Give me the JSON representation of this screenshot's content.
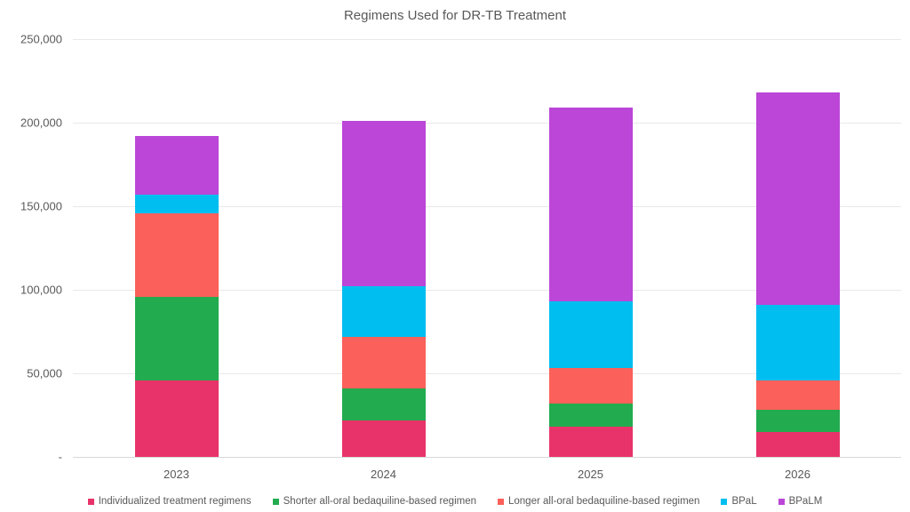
{
  "chart_data": {
    "type": "bar",
    "stacked": true,
    "title": "Regimens Used for DR-TB Treatment",
    "xlabel": "",
    "ylabel": "",
    "categories": [
      "2023",
      "2024",
      "2025",
      "2026"
    ],
    "series": [
      {
        "name": "Individualized treatment regimens",
        "color": "#e8336a",
        "values": [
          46000,
          22000,
          18000,
          15000
        ]
      },
      {
        "name": "Shorter all-oral bedaquiline-based regimen",
        "color": "#22ab4f",
        "values": [
          50000,
          19000,
          14000,
          13000
        ]
      },
      {
        "name": "Longer all-oral bedaquiline-based regimen",
        "color": "#fb605a",
        "values": [
          50000,
          31000,
          21000,
          18000
        ]
      },
      {
        "name": "BPaL",
        "color": "#00bef0",
        "values": [
          11000,
          30000,
          40000,
          45000
        ]
      },
      {
        "name": "BPaLM",
        "color": "#bb46d8",
        "values": [
          35000,
          99000,
          116000,
          127000
        ]
      }
    ],
    "totals": [
      192000,
      201000,
      209000,
      218000
    ],
    "ylim": [
      0,
      250000
    ],
    "ytick_values": [
      0,
      50000,
      100000,
      150000,
      200000,
      250000
    ],
    "ytick_labels": [
      "-",
      "50,000",
      "100,000",
      "150,000",
      "200,000",
      "250,000"
    ],
    "grid": true,
    "legend_position": "bottom",
    "colors": {
      "title_text": "#595959",
      "axis_text": "#595959",
      "gridline": "#e8e8e8",
      "axis_line": "#d9d9d9",
      "background": "#ffffff"
    }
  }
}
